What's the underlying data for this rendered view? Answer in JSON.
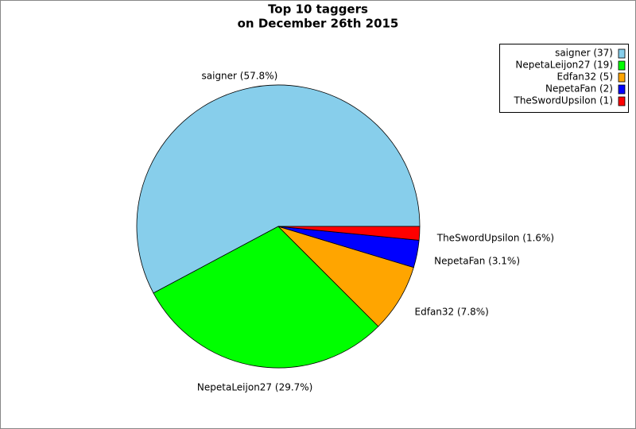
{
  "chart_data": {
    "type": "pie",
    "title": "Top 10 taggers",
    "subtitle": "on December 26th 2015",
    "series": [
      {
        "name": "saigner",
        "values": [
          37,
          19,
          5,
          2,
          1
        ]
      }
    ],
    "legend_labels": [
      "saigner (37)",
      "NepetaLeijon27 (19)",
      "Edfan32 (5)",
      "NepetaFan (2)",
      "TheSwordUpsilon (1)"
    ],
    "value_labels": [
      "saigner (57.8%)",
      "NepetaLeijon27 (29.7%)",
      "Edfan32 (7.8%)",
      "NepetaFan (3.1%)",
      "TheSwordUpsilon (1.6%)"
    ],
    "colors": [
      "#87ceeb",
      "#00ff00",
      "#ffa500",
      "#0000ff",
      "#ff0000"
    ],
    "legend": "upper right"
  }
}
